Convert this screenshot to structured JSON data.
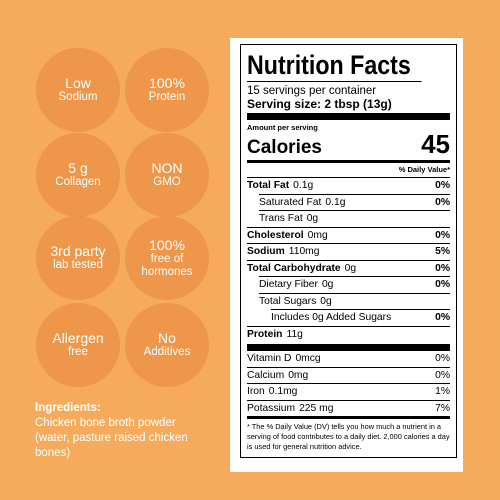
{
  "badges": [
    {
      "lines": [
        "Low",
        "Sodium"
      ]
    },
    {
      "lines": [
        "100%",
        "Protein"
      ]
    },
    {
      "lines": [
        "5 g",
        "Collagen"
      ]
    },
    {
      "lines": [
        "NON",
        "GMO"
      ]
    },
    {
      "lines": [
        "3rd party",
        "lab tested"
      ]
    },
    {
      "lines": [
        "100%",
        "free of",
        "hormones"
      ]
    },
    {
      "lines": [
        "Allergen",
        "free"
      ]
    },
    {
      "lines": [
        "No",
        "Additives"
      ]
    }
  ],
  "ingredients": {
    "heading": "Ingredients:",
    "text": "Chicken bone broth powder (water, pasture raised chicken bones)"
  },
  "nutrition": {
    "title": "Nutrition Facts",
    "servings": "15 servings per container",
    "serving_size": "Serving size: 2 tbsp (13g)",
    "amount_per_serving": "Amount per serving",
    "calories_label": "Calories",
    "calories": "45",
    "dv_heading": "% Daily Value*",
    "rows": [
      {
        "name": "Total Fat",
        "amount": "0.1g",
        "dv": "0%"
      },
      {
        "name": "Saturated Fat",
        "amount": "0.1g",
        "dv": "0%"
      },
      {
        "name": "Trans Fat",
        "amount": "0g"
      },
      {
        "name": "Cholesterol",
        "amount": "0mg",
        "dv": "0%"
      },
      {
        "name": "Sodium",
        "amount": "110mg",
        "dv": "5%"
      },
      {
        "name": "Total Carbohydrate",
        "amount": "0g",
        "dv": "0%"
      },
      {
        "name": "Dietary Fiber",
        "amount": "0g",
        "dv": "0%"
      },
      {
        "name": "Total Sugars",
        "amount": "0g"
      },
      {
        "name": "Includes 0g Added Sugars",
        "dv": "0%"
      },
      {
        "name": "Protein",
        "amount": "11g"
      }
    ],
    "vitamins": [
      {
        "name": "Vitamin D",
        "amount": "0mcg",
        "dv": "0%"
      },
      {
        "name": "Calcium",
        "amount": "0mg",
        "dv": "0%"
      },
      {
        "name": "Iron",
        "amount": "0.1mg",
        "dv": "1%"
      },
      {
        "name": "Potassium",
        "amount": "225 mg",
        "dv": "7%"
      }
    ],
    "footnote": "* The % Daily Value (DV) tells you how much a nutrient in a serving of food contributes to a daily diet. 2,000 calories a day is used for general nutrition advice."
  }
}
